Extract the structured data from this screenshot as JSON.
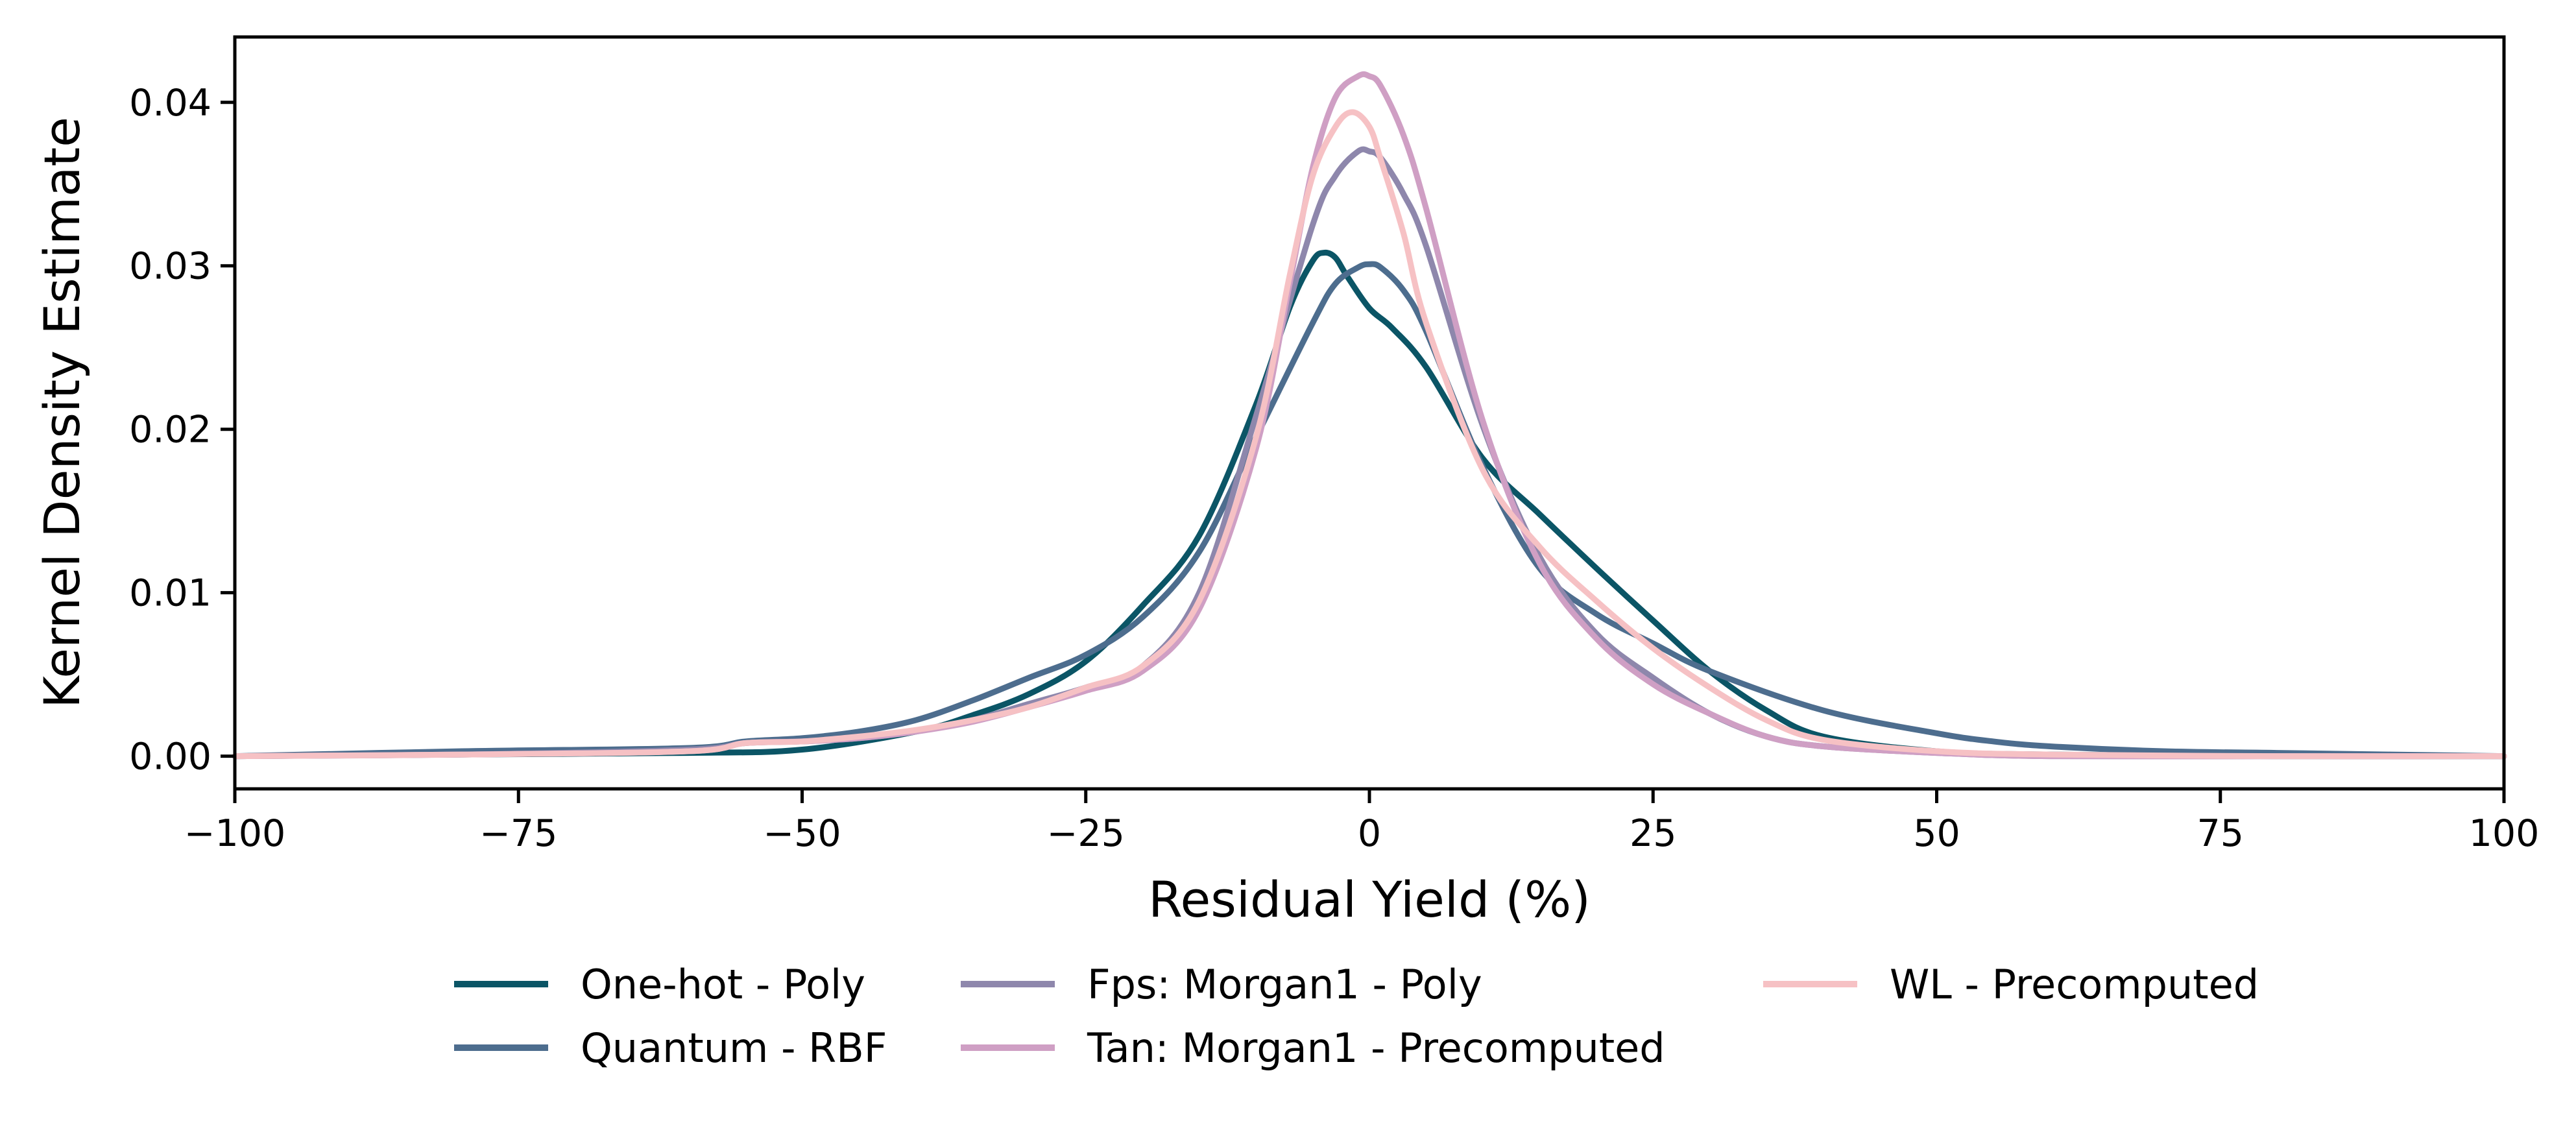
{
  "chart_data": {
    "type": "line",
    "xlabel": "Residual Yield (%)",
    "ylabel": "Kernel Density Estimate",
    "xlim": [
      -100,
      100
    ],
    "ylim": [
      -0.002,
      0.044
    ],
    "xticks": [
      -100,
      -75,
      -50,
      -25,
      0,
      25,
      50,
      75,
      100
    ],
    "xtick_labels": [
      "−100",
      "−75",
      "−50",
      "−25",
      "0",
      "25",
      "50",
      "75",
      "100"
    ],
    "yticks": [
      0.0,
      0.01,
      0.02,
      0.03,
      0.04
    ],
    "ytick_labels": [
      "0.00",
      "0.01",
      "0.02",
      "0.03",
      "0.04"
    ],
    "grid": false,
    "legend_position": "below plot, 3 columns",
    "series": [
      {
        "name": "One-hot - Poly",
        "color": "#0b5566",
        "x": [
          -100,
          -80,
          -60,
          -50,
          -40,
          -35,
          -30,
          -25,
          -20,
          -15,
          -10,
          -7,
          -5,
          -4,
          -3,
          -2,
          0,
          2,
          5,
          10,
          15,
          20,
          25,
          30,
          35,
          40,
          50,
          60,
          80,
          100
        ],
        "y": [
          0.0,
          0.0001,
          0.0002,
          0.0004,
          0.0015,
          0.0025,
          0.0038,
          0.0058,
          0.0092,
          0.0135,
          0.0215,
          0.0275,
          0.0303,
          0.0308,
          0.0305,
          0.0294,
          0.0274,
          0.0262,
          0.0238,
          0.0182,
          0.0148,
          0.0115,
          0.0083,
          0.0052,
          0.0028,
          0.0012,
          0.0003,
          0.0001,
          0.0,
          0.0
        ]
      },
      {
        "name": "Quantum - RBF",
        "color": "#4d6d8e",
        "x": [
          -100,
          -80,
          -60,
          -55,
          -50,
          -45,
          -40,
          -35,
          -30,
          -25,
          -20,
          -15,
          -10,
          -5,
          -3,
          -1,
          0,
          1,
          3,
          5,
          10,
          15,
          20,
          25,
          30,
          40,
          50,
          55,
          60,
          70,
          80,
          90,
          100
        ],
        "y": [
          0.0,
          0.0003,
          0.0005,
          0.0009,
          0.0011,
          0.0015,
          0.0022,
          0.0034,
          0.0048,
          0.0062,
          0.0085,
          0.0125,
          0.0195,
          0.0265,
          0.0289,
          0.0299,
          0.0301,
          0.0299,
          0.0285,
          0.026,
          0.0177,
          0.0115,
          0.0087,
          0.0069,
          0.0052,
          0.0028,
          0.0014,
          0.0009,
          0.0006,
          0.0003,
          0.0002,
          0.0001,
          0.0
        ]
      },
      {
        "name": "Fps: Morgan1 - Poly",
        "color": "#8e87ac",
        "x": [
          -100,
          -80,
          -60,
          -55,
          -50,
          -45,
          -40,
          -35,
          -30,
          -25,
          -20,
          -15,
          -10,
          -5,
          -3,
          -1,
          0,
          1,
          3,
          5,
          10,
          15,
          20,
          25,
          30,
          35,
          40,
          50,
          60,
          80,
          100
        ],
        "y": [
          0.0,
          0.0001,
          0.0004,
          0.0008,
          0.0009,
          0.0011,
          0.0015,
          0.0022,
          0.0032,
          0.0042,
          0.0055,
          0.01,
          0.0208,
          0.0325,
          0.0355,
          0.037,
          0.037,
          0.0366,
          0.0344,
          0.0312,
          0.0202,
          0.0122,
          0.0075,
          0.0048,
          0.0026,
          0.0012,
          0.0006,
          0.0002,
          0.0,
          0.0,
          0.0
        ]
      },
      {
        "name": "Tan: Morgan1 - Precomputed",
        "color": "#cf9fc4",
        "x": [
          -100,
          -80,
          -60,
          -55,
          -50,
          -45,
          -40,
          -35,
          -30,
          -25,
          -20,
          -15,
          -10,
          -7,
          -5,
          -3,
          -1,
          0,
          1,
          3,
          5,
          10,
          15,
          20,
          25,
          30,
          35,
          40,
          50,
          60,
          80,
          100
        ],
        "y": [
          0.0,
          0.0001,
          0.0003,
          0.0008,
          0.0009,
          0.0011,
          0.0015,
          0.0021,
          0.003,
          0.004,
          0.0052,
          0.009,
          0.0188,
          0.029,
          0.036,
          0.0403,
          0.0416,
          0.0416,
          0.041,
          0.038,
          0.0335,
          0.0205,
          0.0118,
          0.0072,
          0.0044,
          0.0026,
          0.0012,
          0.0006,
          0.0002,
          0.0,
          0.0,
          0.0
        ]
      },
      {
        "name": "WL - Precomputed",
        "color": "#f6c1c4",
        "x": [
          -100,
          -80,
          -60,
          -55,
          -50,
          -45,
          -40,
          -35,
          -30,
          -25,
          -20,
          -15,
          -10,
          -7,
          -5,
          -3,
          -1.5,
          0,
          1,
          3,
          5,
          10,
          15,
          20,
          25,
          30,
          35,
          40,
          50,
          60,
          80,
          100
        ],
        "y": [
          0.0,
          0.0001,
          0.0003,
          0.0008,
          0.0009,
          0.0012,
          0.0016,
          0.0022,
          0.003,
          0.0042,
          0.0055,
          0.0095,
          0.0195,
          0.0295,
          0.0355,
          0.0385,
          0.0394,
          0.0385,
          0.0365,
          0.032,
          0.0265,
          0.0175,
          0.0128,
          0.0095,
          0.0066,
          0.0042,
          0.0022,
          0.001,
          0.0003,
          0.0001,
          0.0,
          0.0
        ]
      }
    ]
  }
}
